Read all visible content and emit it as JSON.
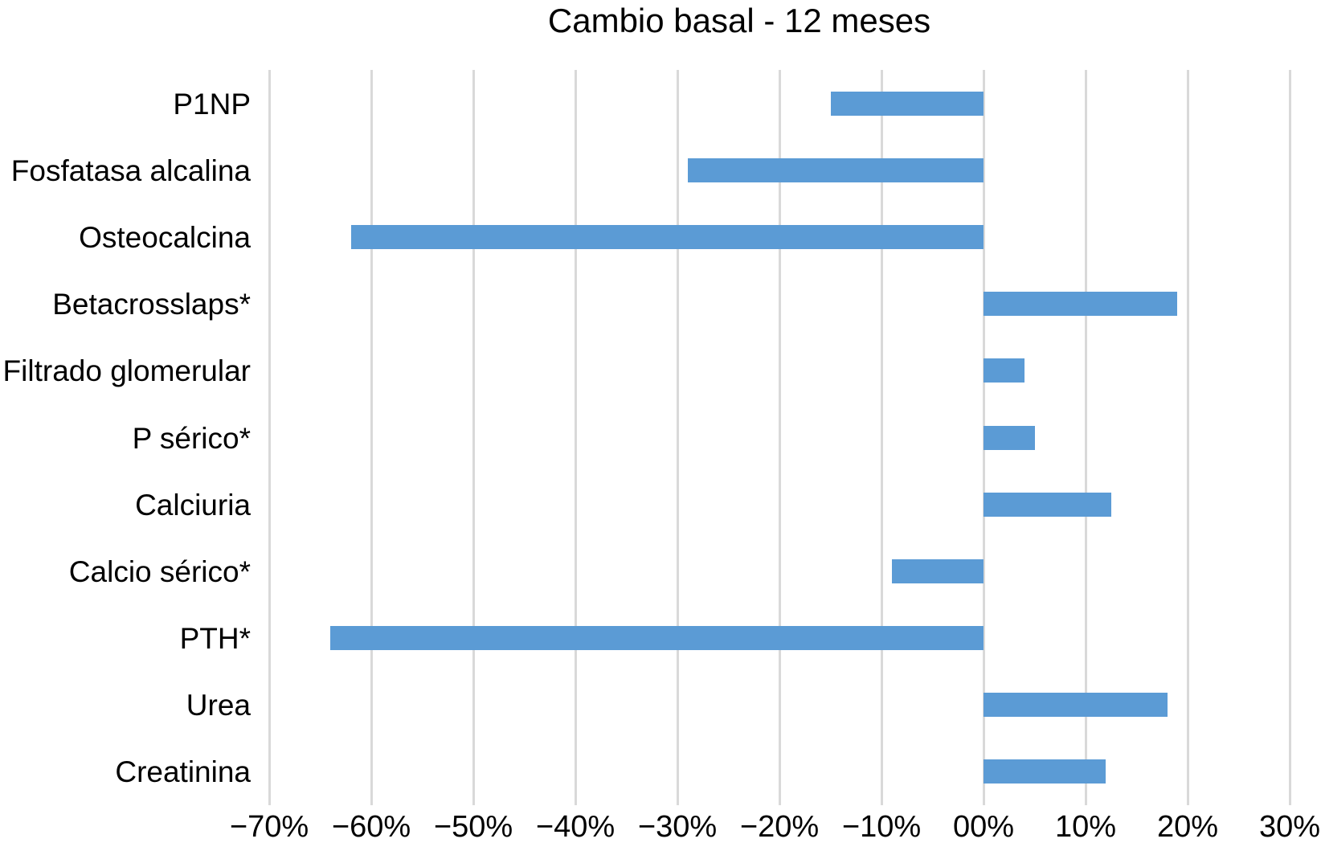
{
  "title": "Cambio basal - 12 meses",
  "colors": {
    "bar": "#5b9bd5",
    "gridline": "#d9d9d9",
    "text": "#000000",
    "background": "#ffffff"
  },
  "chart_data": {
    "type": "bar",
    "orientation": "horizontal",
    "title": "Cambio basal - 12 meses",
    "categories": [
      "P1NP",
      "Fosfatasa alcalina",
      "Osteocalcina",
      "Betacrosslaps*",
      "Filtrado glomerular",
      "P sérico*",
      "Calciuria",
      "Calcio sérico*",
      "PTH*",
      "Urea",
      "Creatinina"
    ],
    "values": [
      -15,
      -29,
      -62,
      19,
      4,
      5,
      12.5,
      -9,
      -64,
      18,
      12
    ],
    "unit": "%",
    "xlabel": "",
    "ylabel": "",
    "xlim": [
      -70,
      30
    ],
    "xticks": [
      -70,
      -60,
      -50,
      -40,
      -30,
      -20,
      -10,
      0,
      10,
      20,
      30
    ],
    "xtick_labels": [
      "−70%",
      "−60%",
      "−50%",
      "−40%",
      "−30%",
      "−20%",
      "−10%",
      "00%",
      "10%",
      "20%",
      "30%"
    ],
    "grid": "vertical-only",
    "legend": "none"
  }
}
